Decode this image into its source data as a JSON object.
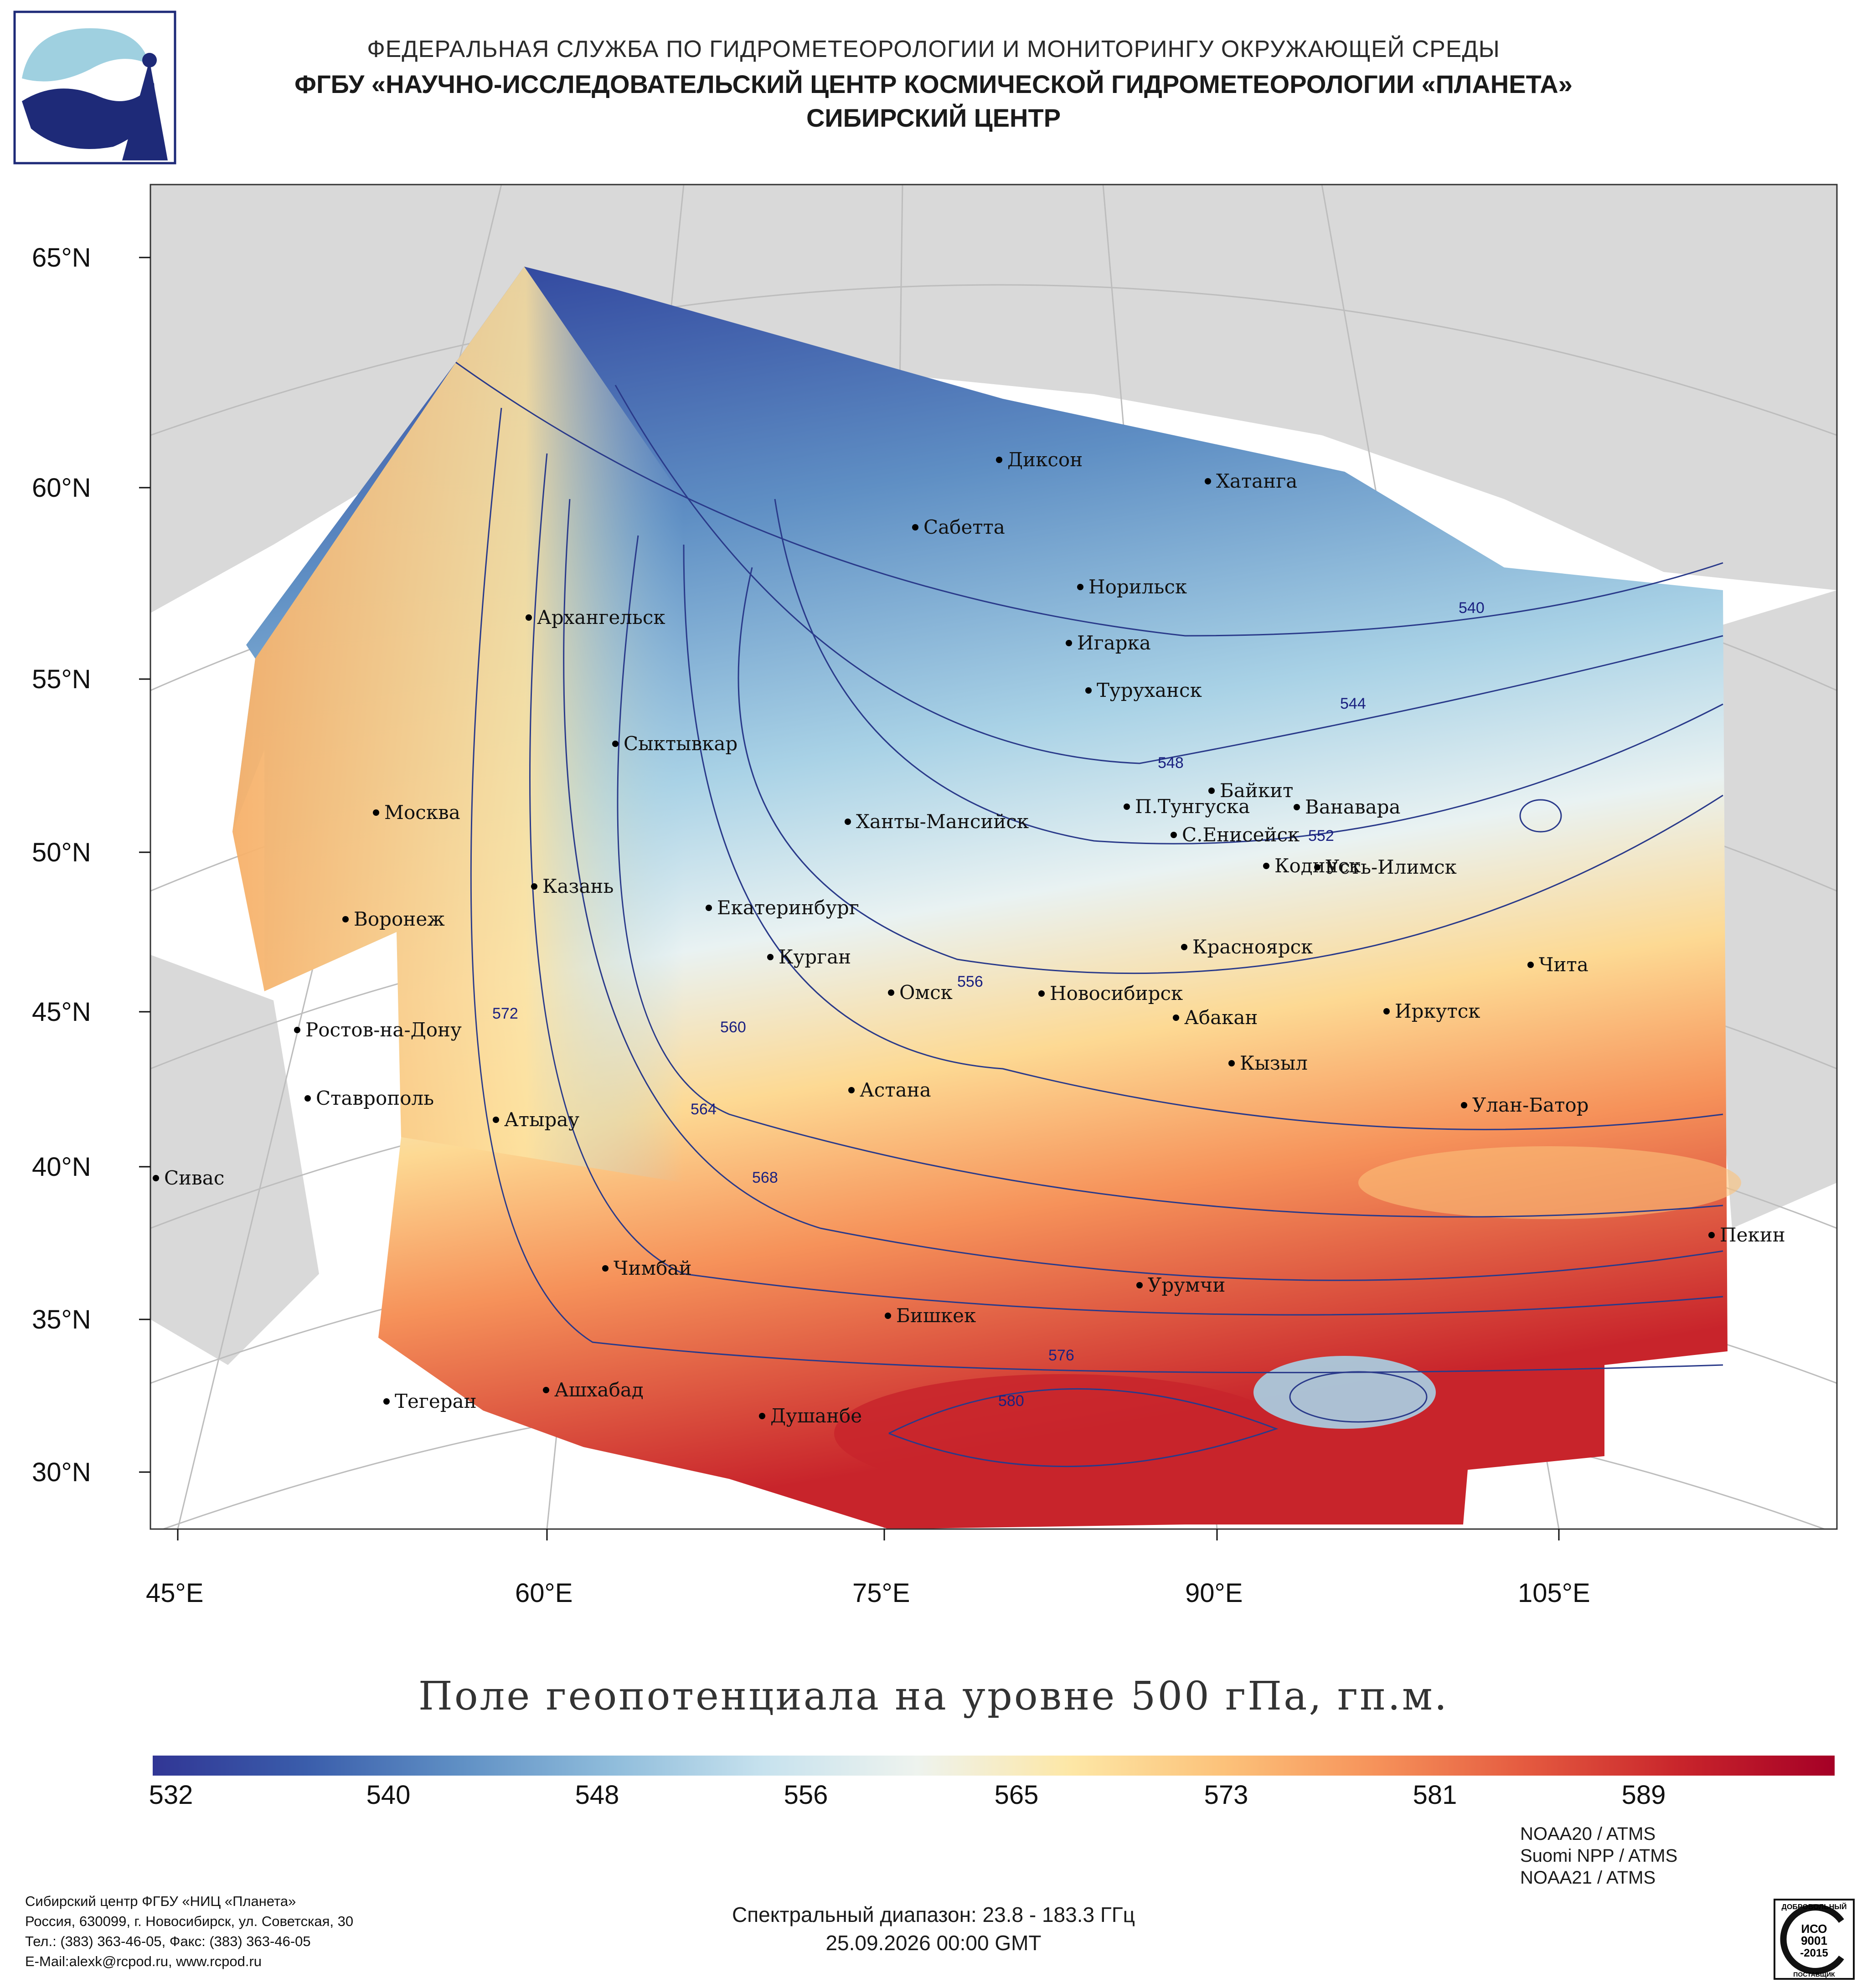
{
  "header": {
    "line1": "ФЕДЕРАЛЬНАЯ СЛУЖБА ПО ГИДРОМЕТЕОРОЛОГИИ И МОНИТОРИНГУ ОКРУЖАЮЩЕЙ СРЕДЫ",
    "line2": "ФГБУ «НАУЧНО-ИССЛЕДОВАТЕЛЬСКИЙ ЦЕНТР КОСМИЧЕСКОЙ ГИДРОМЕТЕОРОЛОГИИ «ПЛАНЕТА»",
    "line3": "СИБИРСКИЙ ЦЕНТР"
  },
  "logo": {
    "icon": "planeta-logo-icon"
  },
  "map": {
    "lat_labels": [
      "65°N",
      "60°N",
      "55°N",
      "50°N",
      "45°N",
      "40°N",
      "35°N",
      "30°N"
    ],
    "lon_labels": [
      "45°E",
      "60°E",
      "75°E",
      "90°E",
      "105°E"
    ],
    "cities": [
      "Диксон",
      "Хатанга",
      "Сабетта",
      "Норильск",
      "Архангельск",
      "Игарка",
      "Туруханск",
      "Сыктывкар",
      "Байкит",
      "П.Тунгуска",
      "Ванавара",
      "Москва",
      "Ханты-Мансийск",
      "С.Енисейск",
      "Кодинск",
      "Усть-Илимск",
      "Казань",
      "Екатеринбург",
      "Воронеж",
      "Красноярск",
      "Курган",
      "Чита",
      "Омск",
      "Новосибирск",
      "Абакан",
      "Иркутск",
      "Ростов-на-Дону",
      "Кызыл",
      "Астана",
      "Ставрополь",
      "Улан-Батор",
      "Атырау",
      "Сивас",
      "Пекин",
      "Чимбай",
      "Урумчи",
      "Бишкек",
      "Ашхабад",
      "Тегеран",
      "Душанбе"
    ],
    "contour_labels": [
      "540",
      "544",
      "548",
      "552",
      "556",
      "560",
      "564",
      "568",
      "572",
      "576",
      "580"
    ]
  },
  "colors": {
    "low": "#2c3e9a",
    "mid": "#e9f2f2",
    "high": "#c8242b",
    "land": "#d9d9d9",
    "contour": "#2a3a8a"
  },
  "title": "Поле геопотенциала на уровне 500 гПа, гп.м.",
  "colorbar": {
    "ticks": [
      "532",
      "540",
      "548",
      "556",
      "565",
      "573",
      "581",
      "589"
    ],
    "colors": [
      "#313695",
      "#3a5dab",
      "#5f8fc4",
      "#8fbcdb",
      "#c7e2ee",
      "#eef3ee",
      "#fde7a6",
      "#fcc27a",
      "#f6925a",
      "#e4593f",
      "#c8242b",
      "#a50026"
    ]
  },
  "footer": {
    "org_lines": [
      "Сибирский центр ФГБУ «НИЦ «Планета»",
      "Россия, 630099, г. Новосибирск, ул. Советская, 30",
      "Тел.: (383) 363-46-05, Факс: (383) 363-46-05",
      "E-Mail:alexk@rcpod.ru, www.rcpod.ru"
    ],
    "spectral": "Спектральный диапазон: 23.8 - 183.3 ГГц",
    "datetime": "25.09.2026 00:00 GMT",
    "sensors": [
      "NOAA20 / ATMS",
      "Suomi NPP / ATMS",
      "NOAA21 / ATMS"
    ],
    "iso_top": "ДОБРОВОЛЬНЫЙ",
    "iso_label": "ИСО",
    "iso_num": "9001",
    "iso_year": "-2015",
    "iso_bottom": "ПОСТАВЩИК"
  }
}
